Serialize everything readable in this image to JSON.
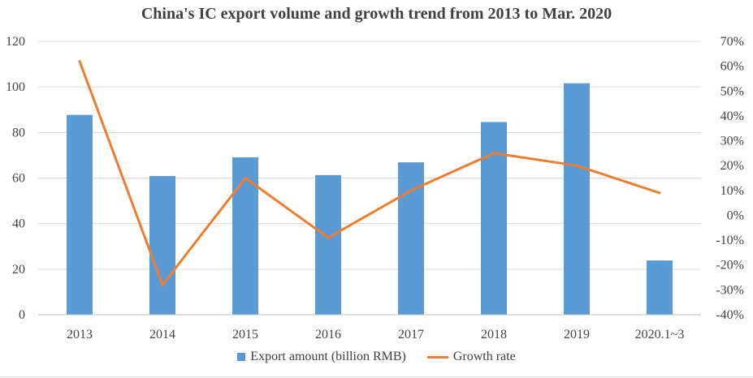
{
  "chart_data": {
    "type": "bar",
    "title": "China's IC export volume and growth trend from 2013 to Mar. 2020",
    "categories": [
      "2013",
      "2014",
      "2015",
      "2016",
      "2017",
      "2018",
      "2019",
      "2020.1~3"
    ],
    "series": [
      {
        "name": "Export amount (billion RMB)",
        "type": "bar",
        "axis": "left",
        "color": "#5b9bd5",
        "values": [
          87.7,
          60.9,
          69.1,
          61.3,
          66.9,
          84.6,
          101.6,
          23.8
        ]
      },
      {
        "name": "Growth rate",
        "type": "line",
        "axis": "right",
        "color": "#ed7d31",
        "values": [
          62,
          null,
          15,
          -9,
          10,
          25,
          20,
          9
        ]
      }
    ],
    "growth_rate_2014": -28,
    "ylim_left": [
      0,
      120
    ],
    "ylim_right": [
      -40,
      70
    ],
    "yticks_left": [
      "0",
      "20",
      "40",
      "60",
      "80",
      "100",
      "120"
    ],
    "yticks_right": [
      "-40%",
      "-30%",
      "-20%",
      "-10%",
      "0%",
      "10%",
      "20%",
      "30%",
      "40%",
      "50%",
      "60%",
      "70%"
    ],
    "grid": true,
    "legend_position": "bottom"
  }
}
